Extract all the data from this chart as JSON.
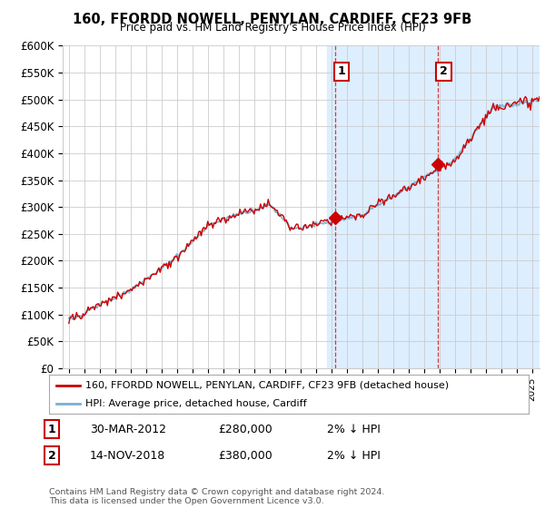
{
  "title": "160, FFORDD NOWELL, PENYLAN, CARDIFF, CF23 9FB",
  "subtitle": "Price paid vs. HM Land Registry's House Price Index (HPI)",
  "legend_line1": "160, FFORDD NOWELL, PENYLAN, CARDIFF, CF23 9FB (detached house)",
  "legend_line2": "HPI: Average price, detached house, Cardiff",
  "annotation1_label": "1",
  "annotation1_date": "30-MAR-2012",
  "annotation1_price": "£280,000",
  "annotation1_pct": "2% ↓ HPI",
  "annotation2_label": "2",
  "annotation2_date": "14-NOV-2018",
  "annotation2_price": "£380,000",
  "annotation2_pct": "2% ↓ HPI",
  "footnote": "Contains HM Land Registry data © Crown copyright and database right 2024.\nThis data is licensed under the Open Government Licence v3.0.",
  "ylim": [
    0,
    600000
  ],
  "yticks": [
    0,
    50000,
    100000,
    150000,
    200000,
    250000,
    300000,
    350000,
    400000,
    450000,
    500000,
    550000,
    600000
  ],
  "xlim_start": 1994.6,
  "xlim_end": 2025.5,
  "house_color": "#cc0000",
  "hpi_color": "#7ab0d4",
  "shaded_region_color": "#ddeeff",
  "shaded_x_start": 2011.75,
  "shaded_x_end": 2025.5,
  "vline1_x": 2012.24,
  "vline2_x": 2018.88,
  "background_color": "#ffffff",
  "grid_color": "#cccccc",
  "sale1_x": 2012.24,
  "sale1_y": 280000,
  "sale2_x": 2018.88,
  "sale2_y": 380000
}
